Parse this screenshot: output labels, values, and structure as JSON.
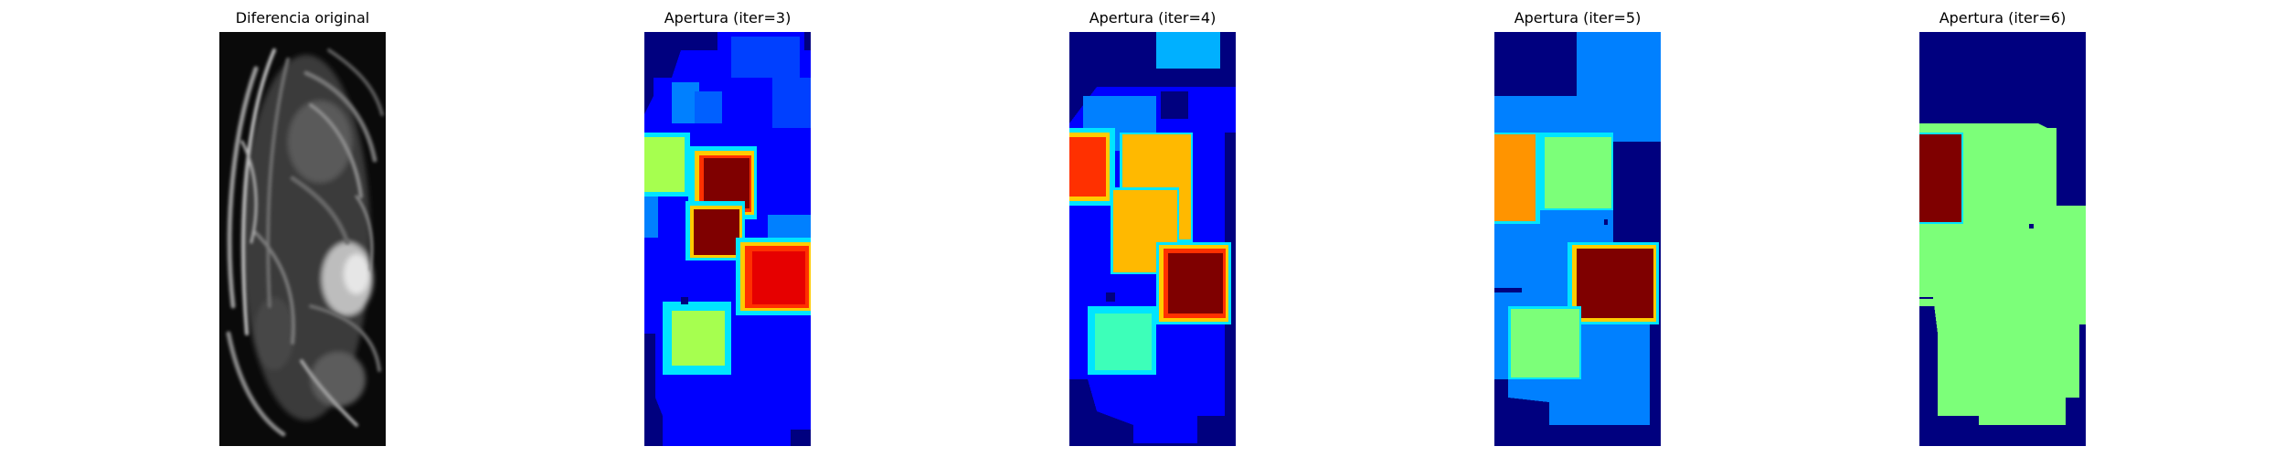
{
  "panels": [
    {
      "title": "Diferencia original"
    },
    {
      "title": "Apertura (iter=3)"
    },
    {
      "title": "Apertura (iter=4)"
    },
    {
      "title": "Apertura (iter=5)"
    },
    {
      "title": "Apertura (iter=6)"
    }
  ],
  "colors": {
    "background": "#ffffff",
    "jet_dark_blue": "#00007f",
    "jet_blue": "#0000ff",
    "jet_azure": "#0080ff",
    "jet_cyan": "#00e5ff",
    "jet_aquamarine": "#3dffb9",
    "jet_green": "#7cff79",
    "jet_yellow_green": "#a6ff4f",
    "jet_amber": "#ffb900",
    "jet_orange": "#ff9400",
    "jet_red": "#ff3000",
    "jet_dark_red": "#7f0000",
    "gray_dark": "#0a0a0a",
    "gray_light": "#e6e6e6"
  }
}
